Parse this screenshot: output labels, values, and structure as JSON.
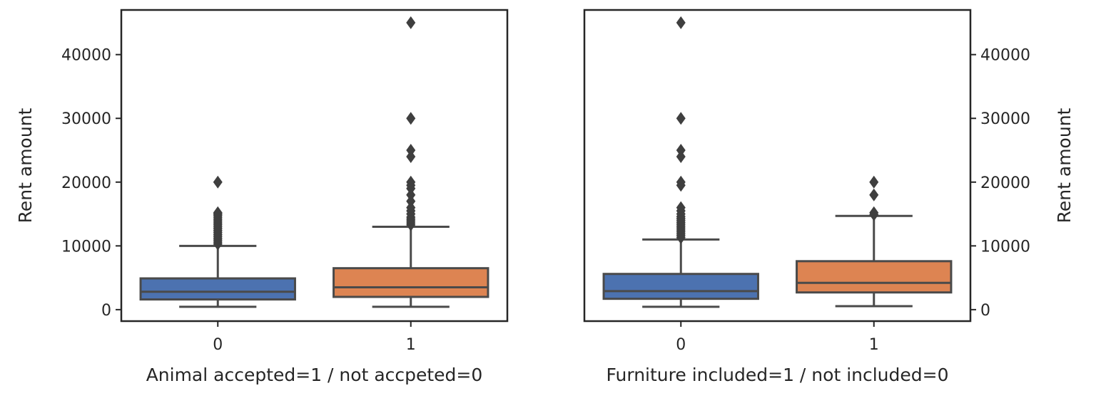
{
  "chart_data": [
    {
      "type": "box",
      "xlabel": "Animal accepted=1 / not accpeted=0",
      "ylabel": "Rent amount",
      "ylabel_side": "left",
      "categories": [
        "0",
        "1"
      ],
      "ylim": [
        -1800,
        47000
      ],
      "yticks": [
        0,
        10000,
        20000,
        30000,
        40000
      ],
      "grid": false,
      "boxes": [
        {
          "category": "0",
          "color": "#4c72b0",
          "whisker_low": 450,
          "q1": 1600,
          "median": 2800,
          "q3": 4900,
          "whisker_high": 10000,
          "outliers": [
            10300,
            10600,
            10900,
            11200,
            11500,
            11800,
            12100,
            12400,
            12700,
            13000,
            13300,
            13600,
            13900,
            14200,
            14500,
            14800,
            15000,
            15200,
            20000
          ]
        },
        {
          "category": "1",
          "color": "#dd8452",
          "whisker_low": 450,
          "q1": 2000,
          "median": 3500,
          "q3": 6500,
          "whisker_high": 13000,
          "outliers": [
            13300,
            13600,
            13900,
            14200,
            14500,
            15000,
            15500,
            16000,
            17000,
            18000,
            19000,
            19500,
            20000,
            24000,
            25000,
            30000,
            45000
          ]
        }
      ]
    },
    {
      "type": "box",
      "xlabel": "Furniture included=1 / not included=0",
      "ylabel": "Rent amount",
      "ylabel_side": "right",
      "categories": [
        "0",
        "1"
      ],
      "ylim": [
        -1800,
        47000
      ],
      "yticks": [
        0,
        10000,
        20000,
        30000,
        40000
      ],
      "grid": false,
      "boxes": [
        {
          "category": "0",
          "color": "#4c72b0",
          "whisker_low": 450,
          "q1": 1700,
          "median": 2900,
          "q3": 5600,
          "whisker_high": 11000,
          "outliers": [
            11300,
            11600,
            11900,
            12200,
            12500,
            12800,
            13100,
            13400,
            13700,
            14000,
            14300,
            14600,
            15000,
            15500,
            16000,
            19500,
            20000,
            24000,
            25000,
            30000,
            45000
          ]
        },
        {
          "category": "1",
          "color": "#dd8452",
          "whisker_low": 550,
          "q1": 2700,
          "median": 4200,
          "q3": 7600,
          "whisker_high": 14700,
          "outliers": [
            14900,
            15200,
            18000,
            20000
          ]
        }
      ]
    }
  ]
}
